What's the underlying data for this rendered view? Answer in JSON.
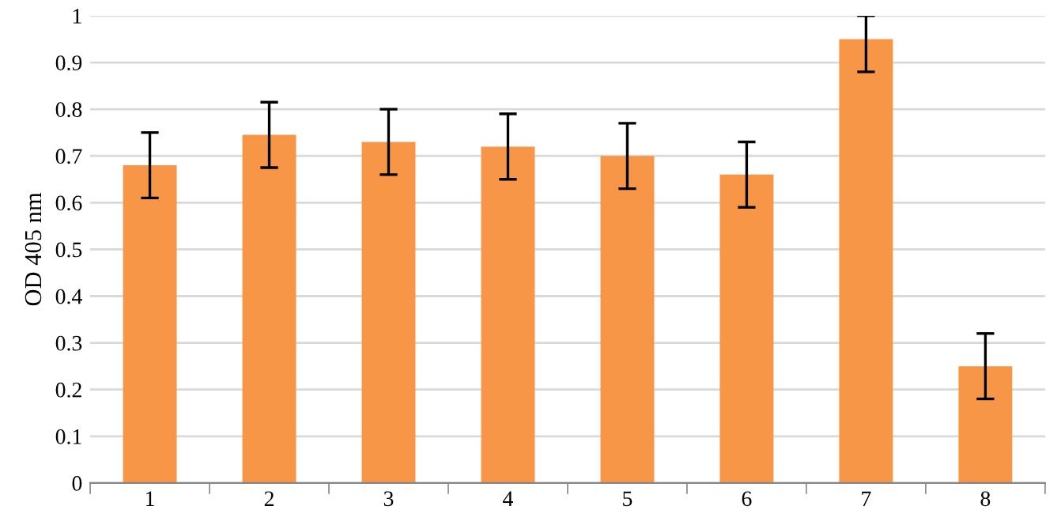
{
  "chart_data": {
    "type": "bar",
    "ylabel": "OD 405 nm",
    "categories": [
      "1",
      "2",
      "3",
      "4",
      "5",
      "6",
      "7",
      "8"
    ],
    "values": [
      0.68,
      0.745,
      0.73,
      0.72,
      0.7,
      0.66,
      0.95,
      0.25
    ],
    "errors": [
      0.07,
      0.07,
      0.07,
      0.07,
      0.07,
      0.07,
      [
        0.88,
        1.0
      ],
      0.07
    ],
    "color": "#f79646",
    "ylim": [
      0,
      1
    ],
    "yticks": [
      0,
      0.1,
      0.2,
      0.3,
      0.4,
      0.5,
      0.6,
      0.7,
      0.8,
      0.9,
      1
    ],
    "grid": "y"
  }
}
